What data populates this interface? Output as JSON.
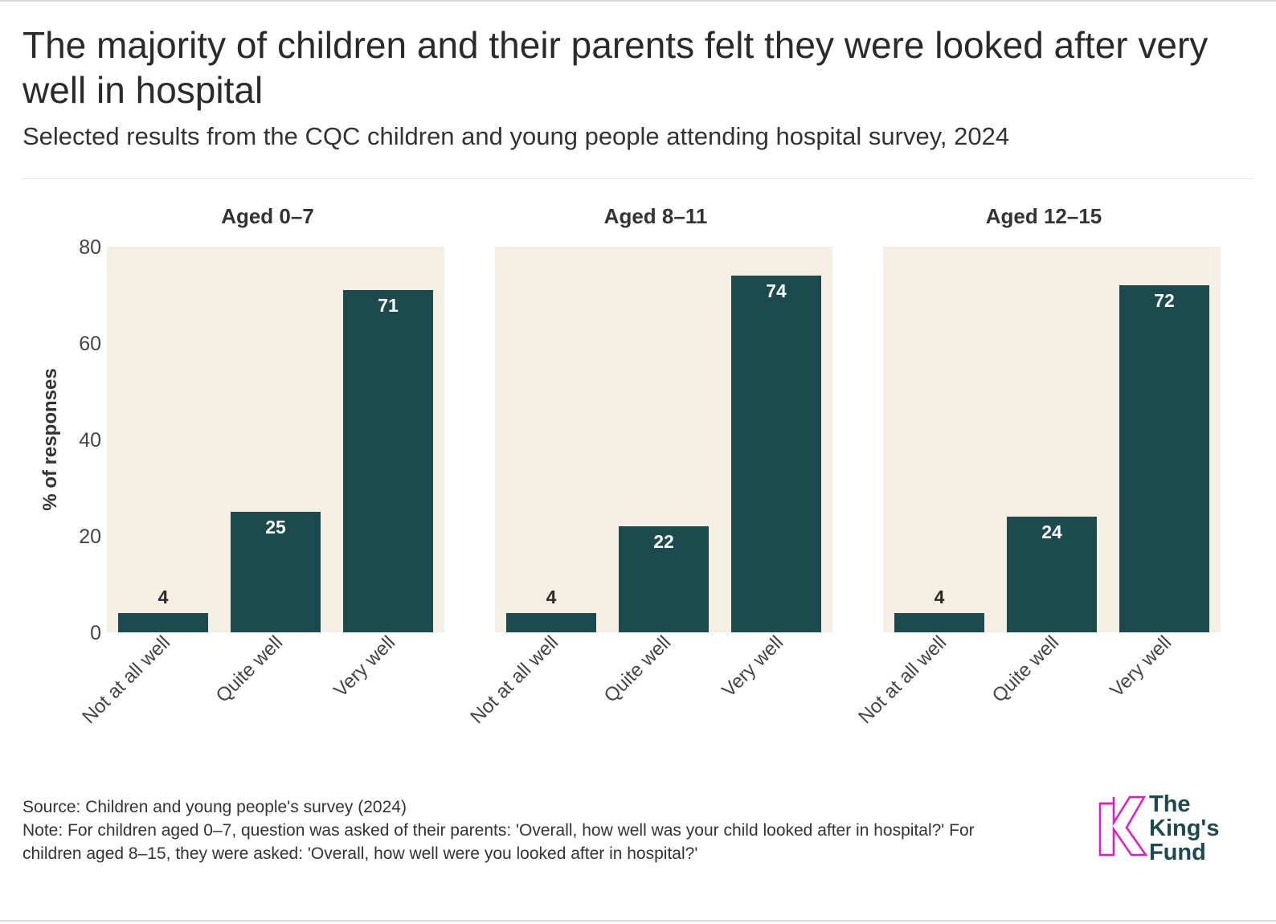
{
  "header": {
    "title": "The majority of children and their parents felt they were looked after very well in hospital",
    "subtitle": "Selected results from the CQC children and young people attending hospital survey, 2024"
  },
  "chart_data": {
    "type": "bar",
    "ylabel": "% of responses",
    "ylim": [
      0,
      80
    ],
    "yticks": [
      "0",
      "20",
      "40",
      "60",
      "80"
    ],
    "categories": [
      "Not at all well",
      "Quite well",
      "Very well"
    ],
    "bar_color": "#1b4a4f",
    "panel_bg": "#f5eee3",
    "panels": [
      {
        "title": "Aged 0–7",
        "values": [
          4,
          25,
          71
        ]
      },
      {
        "title": "Aged 8–11",
        "values": [
          4,
          22,
          74
        ]
      },
      {
        "title": "Aged 12–15",
        "values": [
          4,
          24,
          72
        ]
      }
    ]
  },
  "footer": {
    "source": "Source: Children and young people's survey (2024)",
    "note": "Note: For children aged 0–7, question was asked of their parents: 'Overall, how well was your child looked after in hospital?' For children aged 8–15, they were asked: 'Overall, how well were you looked after in hospital?'"
  },
  "logo": {
    "line1": "The",
    "line2": "King's",
    "line3": "Fund",
    "color": "#e619c8"
  }
}
